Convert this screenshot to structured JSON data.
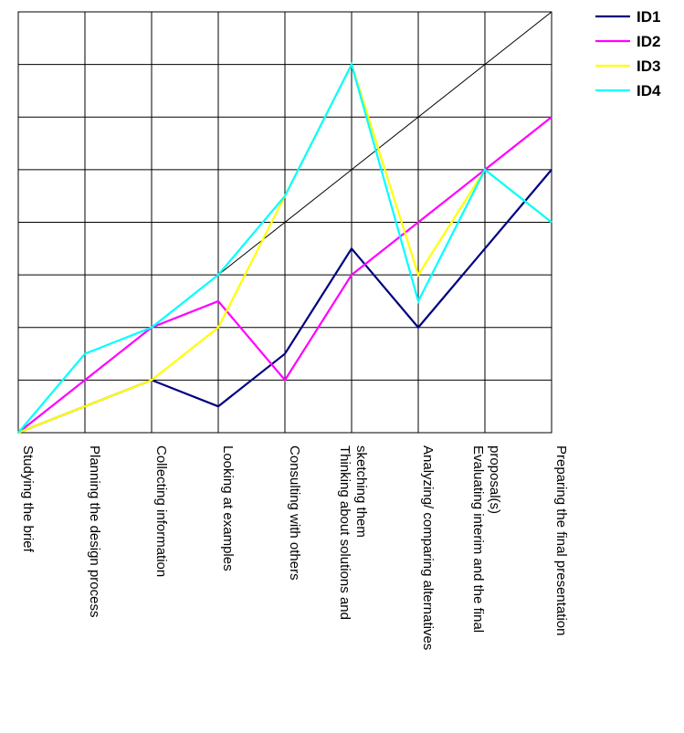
{
  "chart_data": {
    "type": "line",
    "title": "",
    "xlabel": "",
    "ylabel": "",
    "categories": [
      "Studying the brief",
      "Planning the design process",
      "Collecting information",
      "Looking at examples",
      "Consulting with others",
      "Thinking about solutions and sketching them",
      "Analyzing/ comparing alternatives",
      "Evaluating interim and the final proposal(s)",
      "Preparing the final presentation"
    ],
    "category_lines": [
      [
        "Studying the brief"
      ],
      [
        "Planning the design process"
      ],
      [
        "Collecting information"
      ],
      [
        "Looking at examples"
      ],
      [
        "Consulting with others"
      ],
      [
        "Thinking about solutions and",
        "sketching them"
      ],
      [
        "Analyzing/ comparing alternatives"
      ],
      [
        "Evaluating interim and the final",
        "proposal(s)"
      ],
      [
        "Preparing the final presentation"
      ]
    ],
    "ylim": [
      0,
      8
    ],
    "grid": true,
    "diagonal_reference_line": true,
    "legend_position": "top-right",
    "series": [
      {
        "name": "ID1",
        "color": "#000080",
        "values": [
          0,
          0.5,
          1,
          0.5,
          1.5,
          3.5,
          2,
          3.5,
          5
        ]
      },
      {
        "name": "ID2",
        "color": "#ff00ff",
        "values": [
          0,
          1,
          2,
          2.5,
          1,
          3,
          4,
          5,
          6
        ]
      },
      {
        "name": "ID3",
        "color": "#ffff00",
        "values": [
          0,
          0.5,
          1,
          2,
          4.5,
          7,
          3,
          5,
          4
        ]
      },
      {
        "name": "ID4",
        "color": "#00ffff",
        "values": [
          0,
          1.5,
          2,
          3,
          4.5,
          7,
          2.5,
          5,
          4
        ]
      }
    ]
  }
}
